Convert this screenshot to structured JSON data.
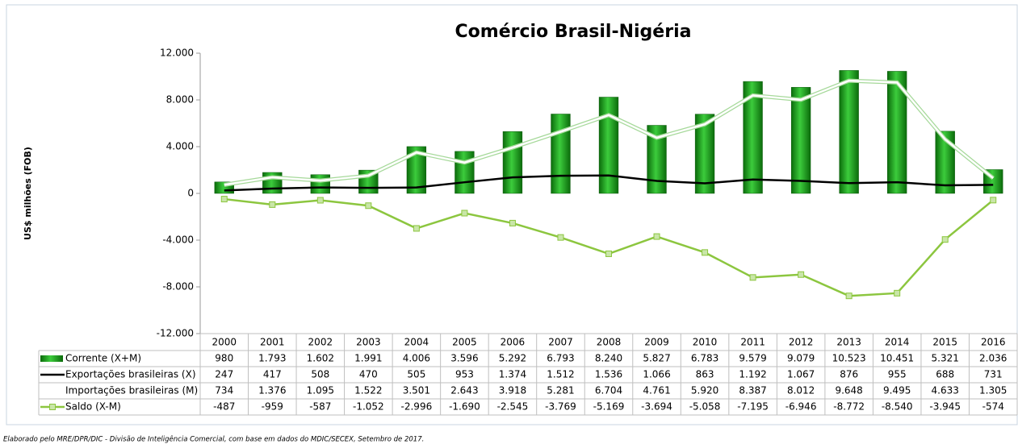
{
  "chart_data": {
    "type": "bar-line-table",
    "title": "Comércio Brasil-Nigéria",
    "y_label": "US$ milhões  (FOB)",
    "footnote": "Elaborado pelo MRE/DPR/DIC - Divisão de Inteligência Comercial, com base em dados do MDIC/SECEX, Setembro de 2017.",
    "categories": [
      "2000",
      "2001",
      "2002",
      "2003",
      "2004",
      "2005",
      "2006",
      "2007",
      "2008",
      "2009",
      "2010",
      "2011",
      "2012",
      "2013",
      "2014",
      "2015",
      "2016"
    ],
    "ylim": [
      -12000,
      12000
    ],
    "yticks": [
      {
        "value": 12000,
        "label": "12.000"
      },
      {
        "value": 8000,
        "label": "8.000"
      },
      {
        "value": 4000,
        "label": "4.000"
      },
      0,
      {
        "value": -4000,
        "label": "-4.000"
      },
      {
        "value": -8000,
        "label": "-8.000"
      },
      {
        "value": -12000,
        "label": "-12.000"
      }
    ],
    "grid": false,
    "series": [
      {
        "name": "Corrente (X+M)",
        "type": "bar",
        "color": "#1a9e1a",
        "values": [
          980,
          1793,
          1602,
          1991,
          4006,
          3596,
          5292,
          6793,
          8240,
          5827,
          6783,
          9579,
          9079,
          10523,
          10451,
          5321,
          2036
        ],
        "value_labels": [
          "980",
          "1.793",
          "1.602",
          "1.991",
          "4.006",
          "3.596",
          "5.292",
          "6.793",
          "8.240",
          "5.827",
          "6.783",
          "9.579",
          "9.079",
          "10.523",
          "10.451",
          "5.321",
          "2.036"
        ]
      },
      {
        "name": "Exportações brasileiras (X)",
        "type": "line",
        "color": "#000000",
        "values": [
          247,
          417,
          508,
          470,
          505,
          953,
          1374,
          1512,
          1536,
          1066,
          863,
          1192,
          1067,
          876,
          955,
          688,
          731
        ],
        "value_labels": [
          "247",
          "417",
          "508",
          "470",
          "505",
          "953",
          "1.374",
          "1.512",
          "1.536",
          "1.066",
          "863",
          "1.192",
          "1.067",
          "876",
          "955",
          "688",
          "731"
        ]
      },
      {
        "name": "Importações brasileiras (M)",
        "type": "line",
        "color": "#ffffff",
        "values": [
          734,
          1376,
          1095,
          1522,
          3501,
          2643,
          3918,
          5281,
          6704,
          4761,
          5920,
          8387,
          8012,
          9648,
          9495,
          4633,
          1305
        ],
        "value_labels": [
          "734",
          "1.376",
          "1.095",
          "1.522",
          "3.501",
          "2.643",
          "3.918",
          "5.281",
          "6.704",
          "4.761",
          "5.920",
          "8.387",
          "8.012",
          "9.648",
          "9.495",
          "4.633",
          "1.305"
        ]
      },
      {
        "name": "Saldo (X-M)",
        "type": "line-marker",
        "color": "#8cc63f",
        "values": [
          -487,
          -959,
          -587,
          -1052,
          -2996,
          -1690,
          -2545,
          -3769,
          -5169,
          -3694,
          -5058,
          -7195,
          -6946,
          -8772,
          -8540,
          -3945,
          -574
        ],
        "value_labels": [
          "-487",
          "-959",
          "-587",
          "-1.052",
          "-2.996",
          "-1.690",
          "-2.545",
          "-3.769",
          "-5.169",
          "-3.694",
          "-5.058",
          "-7.195",
          "-6.946",
          "-8.772",
          "-8.540",
          "-3.945",
          "-574"
        ]
      }
    ]
  }
}
